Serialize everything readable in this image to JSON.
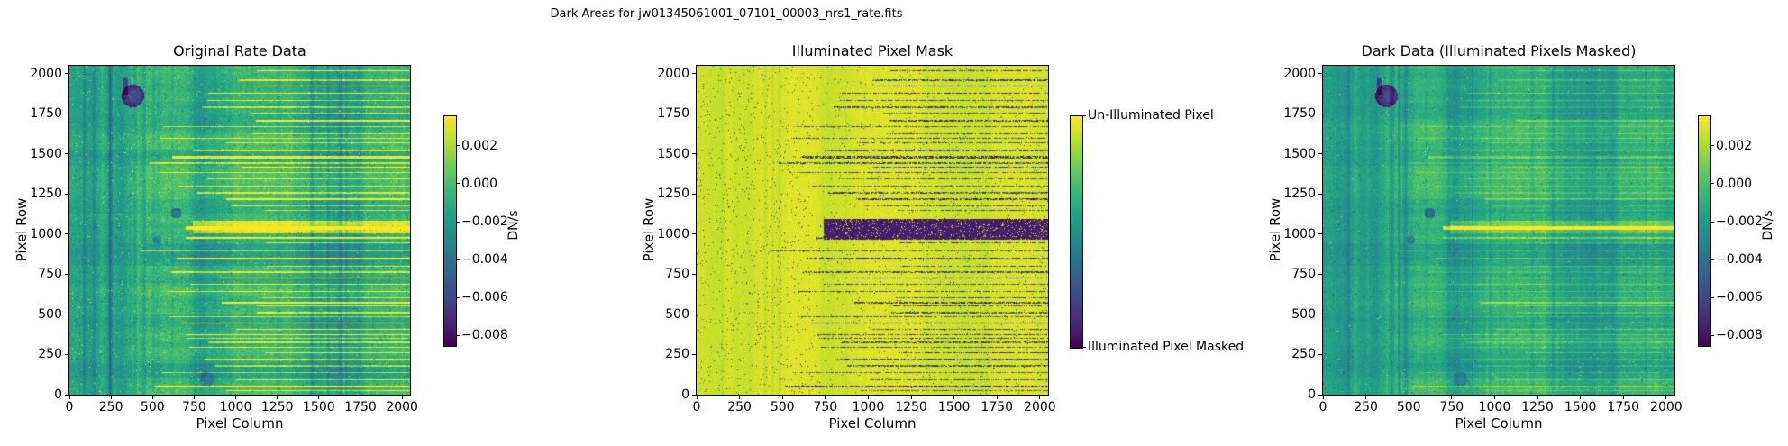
{
  "figure": {
    "title": "Dark Areas for jw01345061001_07101_00003_nrs1_rate.fits",
    "background": "#ffffff"
  },
  "colors": {
    "colormap": "viridis",
    "text": "#000000",
    "axis": "#000000",
    "viridis_top": "#fde725",
    "viridis_bottom": "#440154"
  },
  "panels": [
    {
      "title": "Original Rate Data",
      "xlabel": "Pixel Column",
      "ylabel": "Pixel Row",
      "x_tick_labels": [
        "0",
        "250",
        "500",
        "750",
        "1000",
        "1250",
        "1500",
        "1750",
        "2000"
      ],
      "y_tick_labels": [
        "0",
        "250",
        "500",
        "750",
        "1000",
        "1250",
        "1500",
        "1750",
        "2000"
      ],
      "colorbar": {
        "label": "DN/s",
        "tick_labels": [
          "0.002",
          "0.000",
          "−0.002",
          "−0.004",
          "−0.006",
          "−0.008"
        ],
        "tick_values": [
          0.002,
          0.0,
          -0.002,
          -0.004,
          -0.006,
          -0.008
        ],
        "vmin": -0.0085,
        "vmax": 0.0036
      }
    },
    {
      "title": "Illuminated Pixel Mask",
      "xlabel": "Pixel Column",
      "ylabel": "Pixel Row",
      "x_tick_labels": [
        "0",
        "250",
        "500",
        "750",
        "1000",
        "1250",
        "1500",
        "1750",
        "2000"
      ],
      "y_tick_labels": [
        "0",
        "250",
        "500",
        "750",
        "1000",
        "1250",
        "1500",
        "1750",
        "2000"
      ],
      "colorbar": {
        "label": "",
        "tick_labels": [
          "Un-Illuminated Pixel",
          "Illuminated Pixel Masked"
        ],
        "tick_fracs": [
          0.0,
          1.0
        ]
      }
    },
    {
      "title": "Dark Data (Illuminated Pixels Masked)",
      "xlabel": "Pixel Column",
      "ylabel": "Pixel Row",
      "x_tick_labels": [
        "0",
        "250",
        "500",
        "750",
        "1000",
        "1250",
        "1500",
        "1750",
        "2000"
      ],
      "y_tick_labels": [
        "0",
        "250",
        "500",
        "750",
        "1000",
        "1250",
        "1500",
        "1750",
        "2000"
      ],
      "colorbar": {
        "label": "DN/s",
        "tick_labels": [
          "0.002",
          "0.000",
          "−0.002",
          "−0.004",
          "−0.006",
          "−0.008"
        ],
        "tick_values": [
          0.002,
          0.0,
          -0.002,
          -0.004,
          -0.006,
          -0.008
        ],
        "vmin": -0.0085,
        "vmax": 0.0036
      }
    }
  ],
  "chart_data": [
    {
      "type": "heatmap",
      "title": "Original Rate Data",
      "xlabel": "Pixel Column",
      "ylabel": "Pixel Row",
      "x_range": [
        0,
        2048
      ],
      "y_range": [
        0,
        2048
      ],
      "x_ticks": [
        0,
        250,
        500,
        750,
        1000,
        1250,
        1500,
        1750,
        2000
      ],
      "y_ticks": [
        0,
        250,
        500,
        750,
        1000,
        1250,
        1500,
        1750,
        2000
      ],
      "colormap": "viridis",
      "colorbar_label": "DN/s",
      "colorbar_ticks": [
        0.002,
        0.0,
        -0.002,
        -0.004,
        -0.006,
        -0.008
      ],
      "value_range": [
        -0.0085,
        0.0036
      ],
      "content": "2048x2048 noisy green rate image; bright yellow horizontal spectral traces fill the right two-thirds, brightest thick trace near row 1000 starting near column 750; dark circular blobs near (300,1860) and (640,1130); yellow hot-pixel speckles scattered mostly on left third"
    },
    {
      "type": "heatmap",
      "title": "Illuminated Pixel Mask",
      "xlabel": "Pixel Column",
      "ylabel": "Pixel Row",
      "x_range": [
        0,
        2048
      ],
      "y_range": [
        0,
        2048
      ],
      "x_ticks": [
        0,
        250,
        500,
        750,
        1000,
        1250,
        1500,
        1750,
        2000
      ],
      "y_ticks": [
        0,
        250,
        500,
        750,
        1000,
        1250,
        1500,
        1750,
        2000
      ],
      "colormap": "viridis",
      "colorbar_categories": [
        "Un-Illuminated Pixel",
        "Illuminated Pixel Masked"
      ],
      "content": "Binary-like mask: mostly yellow (un-illuminated) with dark purple speckles; dark horizontal trace lines in the right two-thirds matching the spectral traces; darkest wide band near row 1000 from column ~750 to right edge"
    },
    {
      "type": "heatmap",
      "title": "Dark Data (Illuminated Pixels Masked)",
      "xlabel": "Pixel Column",
      "ylabel": "Pixel Row",
      "x_range": [
        0,
        2048
      ],
      "y_range": [
        0,
        2048
      ],
      "x_ticks": [
        0,
        250,
        500,
        750,
        1000,
        1250,
        1500,
        1750,
        2000
      ],
      "y_ticks": [
        0,
        250,
        500,
        750,
        1000,
        1250,
        1500,
        1750,
        2000
      ],
      "colormap": "viridis",
      "colorbar_label": "DN/s",
      "colorbar_ticks": [
        0.002,
        0.0,
        -0.002,
        -0.004,
        -0.006,
        -0.008
      ],
      "value_range": [
        -0.0085,
        0.0036
      ],
      "content": "Same green noisy image as Original Rate Data but with illuminated trace pixels masked: traces appear only as faint lighter-green horizontal lines; dark circular blobs remain"
    }
  ]
}
